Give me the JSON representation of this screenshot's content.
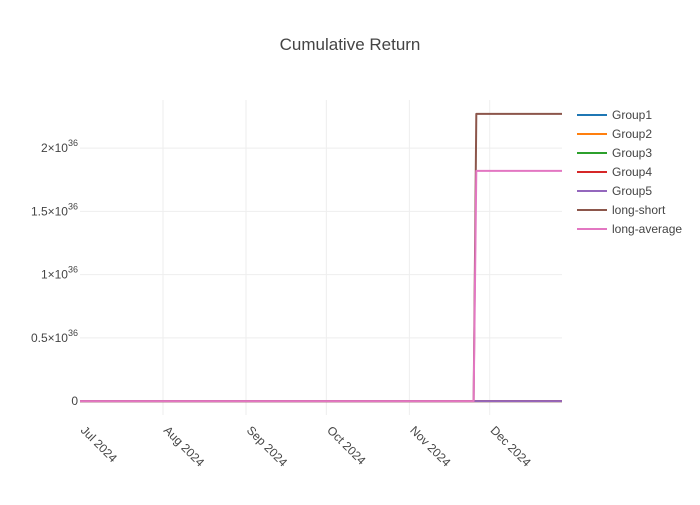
{
  "chart_data": {
    "type": "line",
    "title": "Cumulative Return",
    "xlabel": "",
    "ylabel": "",
    "x_ticks": [
      "Jul 2024",
      "Aug 2024",
      "Sep 2024",
      "Oct 2024",
      "Nov 2024",
      "Dec 2024"
    ],
    "x_range": [
      "2024-07-01",
      "2024-12-28"
    ],
    "y_ticks": [
      {
        "value": 0,
        "mantissa": "0",
        "exponent": ""
      },
      {
        "value": 5e+35,
        "mantissa": "0.5×10",
        "exponent": "36"
      },
      {
        "value": 1e+36,
        "mantissa": "1×10",
        "exponent": "36"
      },
      {
        "value": 1.5e+36,
        "mantissa": "1.5×10",
        "exponent": "36"
      },
      {
        "value": 2e+36,
        "mantissa": "2×10",
        "exponent": "36"
      }
    ],
    "ylim": [
      -1.1e+35,
      2.38e+36
    ],
    "grid": true,
    "legend_position": "right",
    "series": [
      {
        "name": "Group1",
        "color": "#1f77b4",
        "x": [
          "2024-07-01",
          "2024-11-25",
          "2024-11-26",
          "2024-12-28"
        ],
        "y": [
          0,
          0,
          0,
          0
        ]
      },
      {
        "name": "Group2",
        "color": "#ff7f0e",
        "x": [
          "2024-07-01",
          "2024-11-25",
          "2024-11-26",
          "2024-12-28"
        ],
        "y": [
          0,
          0,
          0,
          0
        ]
      },
      {
        "name": "Group3",
        "color": "#2ca02c",
        "x": [
          "2024-07-01",
          "2024-11-25",
          "2024-11-26",
          "2024-12-28"
        ],
        "y": [
          0,
          0,
          0,
          0
        ]
      },
      {
        "name": "Group4",
        "color": "#d62728",
        "x": [
          "2024-07-01",
          "2024-11-25",
          "2024-11-26",
          "2024-12-28"
        ],
        "y": [
          0,
          0,
          0,
          0
        ]
      },
      {
        "name": "Group5",
        "color": "#9467bd",
        "x": [
          "2024-07-01",
          "2024-11-25",
          "2024-11-26",
          "2024-12-28"
        ],
        "y": [
          0,
          0,
          0,
          0
        ]
      },
      {
        "name": "long-short",
        "color": "#8c564b",
        "x": [
          "2024-07-01",
          "2024-11-25",
          "2024-11-26",
          "2024-12-28"
        ],
        "y": [
          0,
          0,
          2.27e+36,
          2.27e+36
        ]
      },
      {
        "name": "long-average",
        "color": "#e377c2",
        "x": [
          "2024-07-01",
          "2024-11-25",
          "2024-11-26",
          "2024-12-28"
        ],
        "y": [
          0,
          0,
          1.82e+36,
          1.82e+36
        ]
      }
    ]
  }
}
